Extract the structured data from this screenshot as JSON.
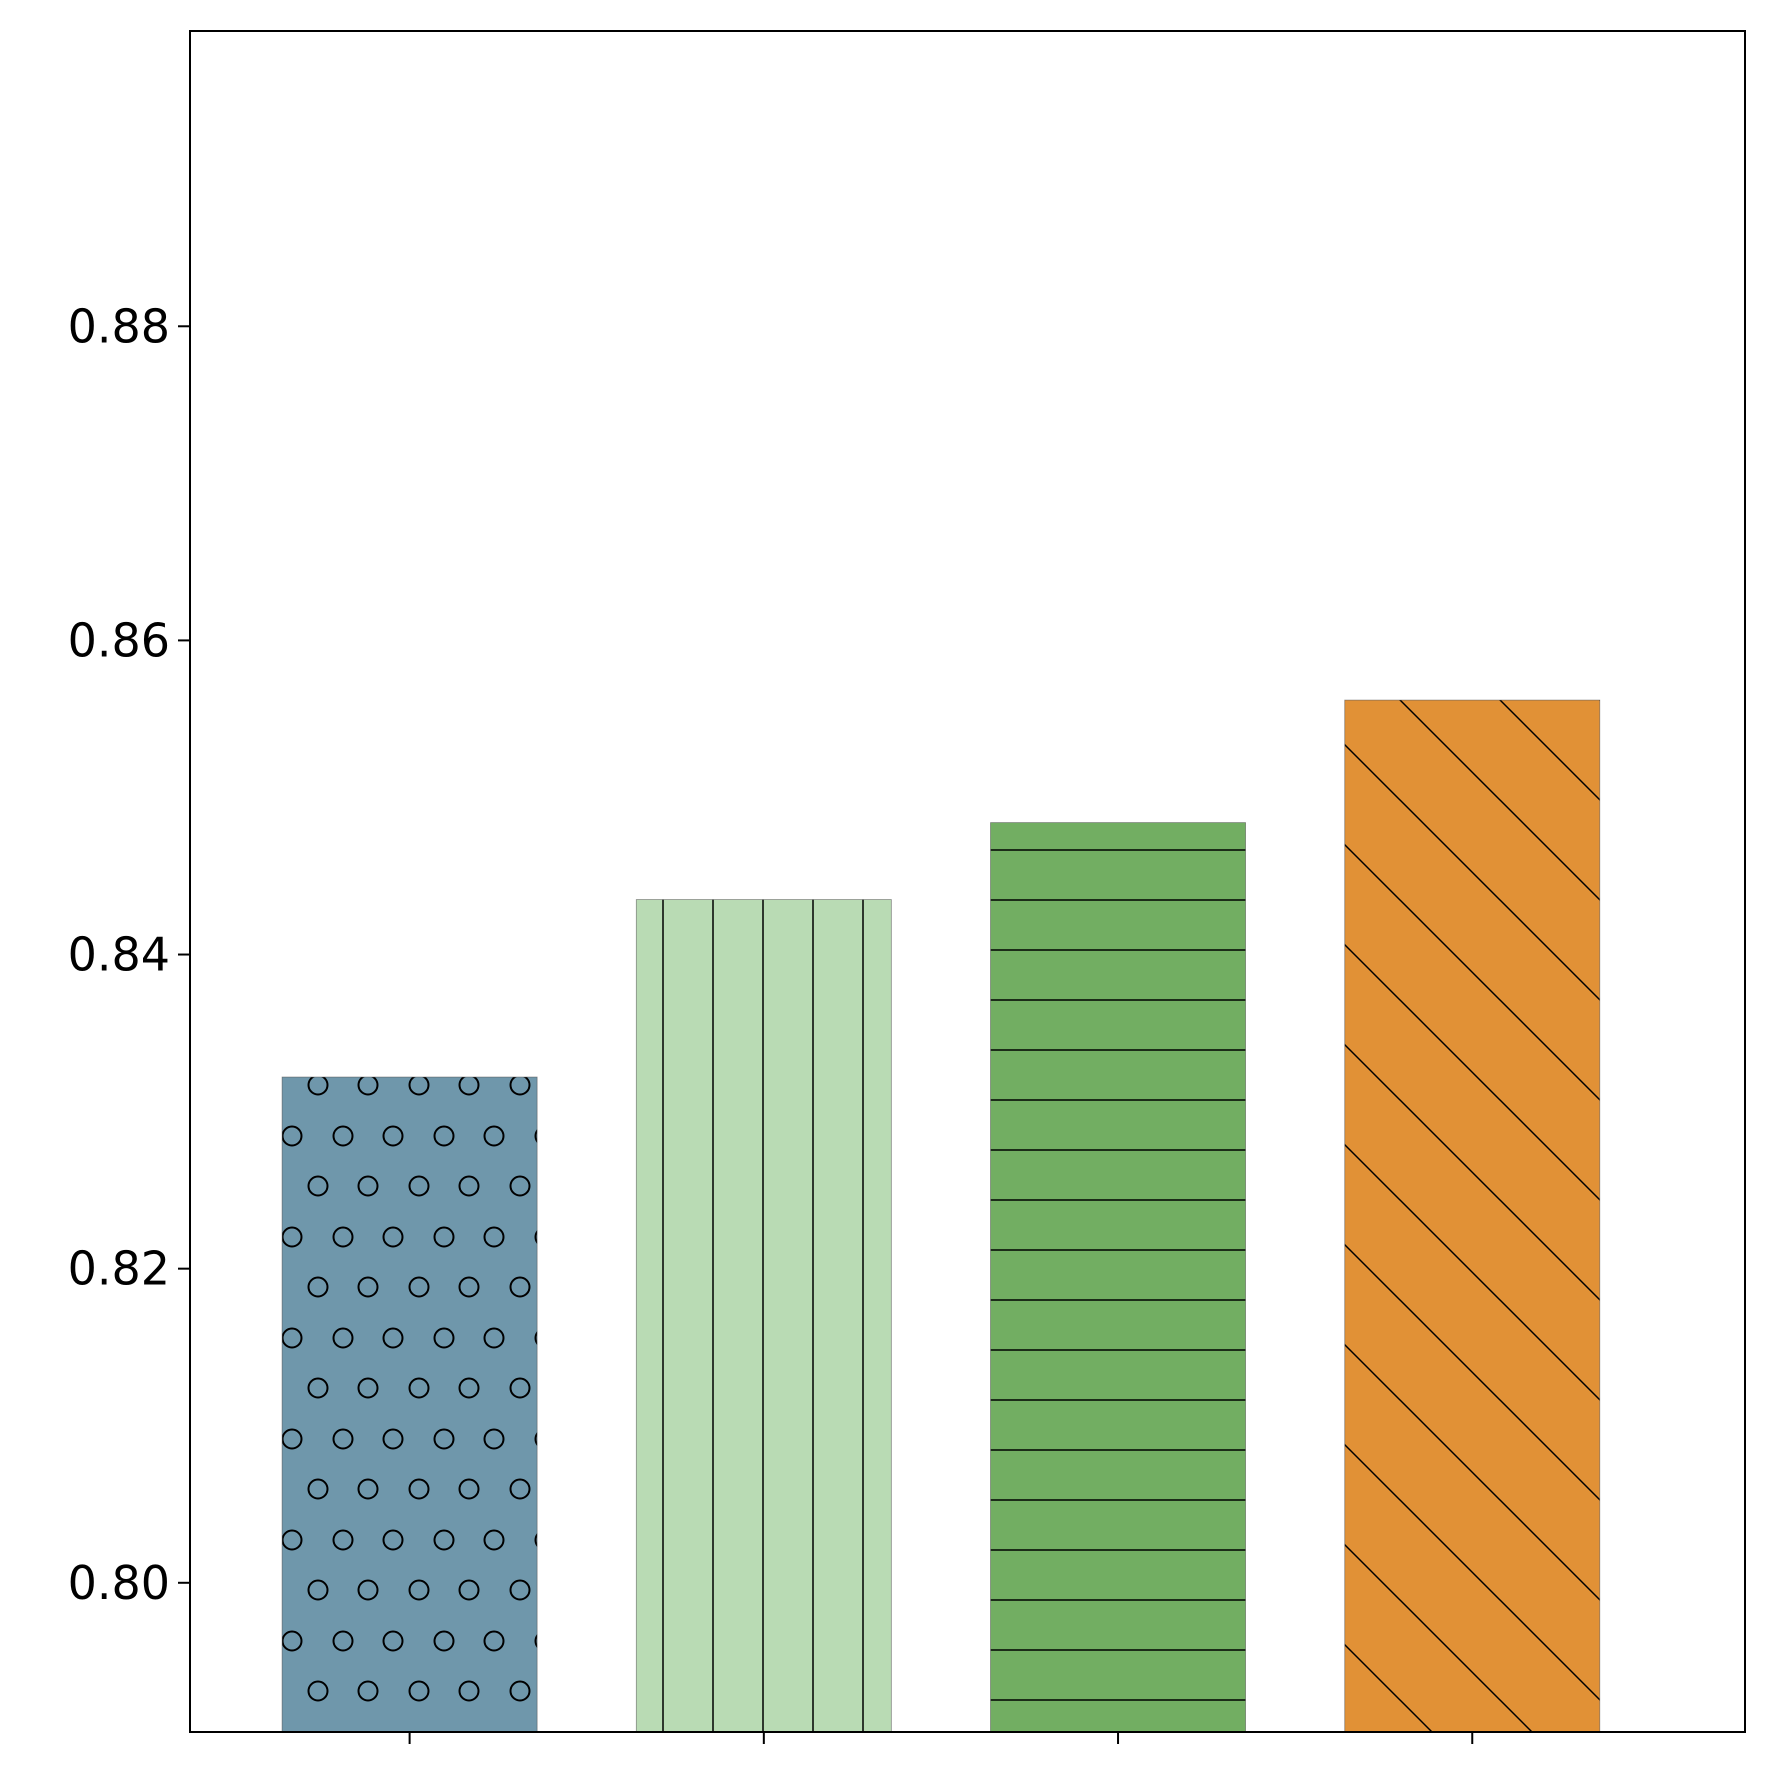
{
  "chart_data": {
    "type": "bar",
    "categories": [
      "",
      "",
      "",
      ""
    ],
    "values": [
      0.8322,
      0.8435,
      0.8484,
      0.8562
    ],
    "colors": [
      "#6f97ab",
      "#b9dbb4",
      "#72ae62",
      "#e19136"
    ],
    "hatches": [
      "circles",
      "vertical",
      "horizontal",
      "diagonal"
    ],
    "ylim": [
      0.7905,
      0.8988
    ],
    "yticks": [
      0.8,
      0.82,
      0.84,
      0.86,
      0.88
    ],
    "ytick_labels": [
      "0.80",
      "0.82",
      "0.84",
      "0.86",
      "0.88"
    ],
    "title": "",
    "xlabel": "",
    "ylabel": "",
    "grid": false,
    "legend": null
  }
}
